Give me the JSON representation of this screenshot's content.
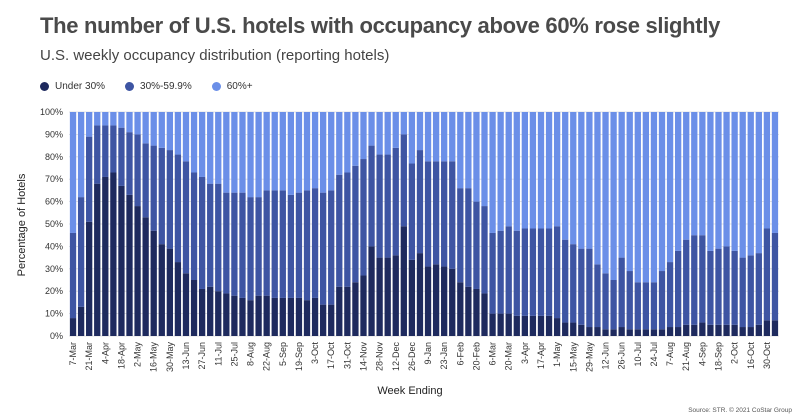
{
  "chart_data": {
    "type": "bar",
    "stacked": true,
    "title": "The number of U.S. hotels with occupancy above 60% rose slightly",
    "subtitle": "U.S. weekly occupancy distribution (reporting hotels)",
    "xlabel": "Week Ending",
    "ylabel": "Percentage of Hotels",
    "ylim": [
      0,
      100
    ],
    "yticks": [
      "0%",
      "10%",
      "20%",
      "30%",
      "40%",
      "50%",
      "60%",
      "70%",
      "80%",
      "90%",
      "100%"
    ],
    "xtick_labels": [
      "7-Mar",
      "21-Mar",
      "4-Apr",
      "18-Apr",
      "2-May",
      "16-May",
      "30-May",
      "13-Jun",
      "27-Jun",
      "11-Jul",
      "25-Jul",
      "8-Aug",
      "22-Aug",
      "5-Sep",
      "19-Sep",
      "3-Oct",
      "17-Oct",
      "31-Oct",
      "14-Nov",
      "28-Nov",
      "12-Dec",
      "26-Dec",
      "9-Jan",
      "23-Jan",
      "6-Feb",
      "20-Feb",
      "6-Mar",
      "20-Mar",
      "3-Apr",
      "17-Apr",
      "1-May",
      "15-May",
      "29-May",
      "12-Jun",
      "26-Jun",
      "10-Jul",
      "24-Jul",
      "7-Aug",
      "21-Aug",
      "4-Sep",
      "18-Sep",
      "2-Oct",
      "16-Oct",
      "30-Oct"
    ],
    "grid": true,
    "legend_position": "top-left",
    "series": [
      {
        "name": "Under 30%",
        "color": "#1e2a5e",
        "values": [
          8,
          13,
          51,
          68,
          71,
          73,
          67,
          63,
          58,
          53,
          47,
          41,
          39,
          33,
          28,
          25,
          21,
          22,
          20,
          19,
          18,
          17,
          16,
          18,
          18,
          17,
          17,
          17,
          17,
          16,
          17,
          14,
          14,
          22,
          22,
          24,
          27,
          40,
          35,
          35,
          36,
          49,
          34,
          37,
          31,
          32,
          31,
          30,
          24,
          22,
          21,
          19,
          10,
          10,
          10,
          9,
          9,
          9,
          9,
          9,
          8,
          6,
          6,
          5,
          4,
          4,
          3,
          3,
          4,
          3,
          3,
          3,
          3,
          3,
          4,
          4,
          5,
          5,
          6,
          5,
          5,
          5,
          5,
          4,
          4,
          5,
          7,
          7
        ]
      },
      {
        "name": "30%-59.9%",
        "color": "#3e55a3",
        "values": [
          38,
          49,
          38,
          26,
          23,
          21,
          26,
          28,
          32,
          33,
          38,
          43,
          44,
          48,
          50,
          48,
          50,
          46,
          48,
          45,
          46,
          47,
          46,
          44,
          47,
          48,
          48,
          46,
          47,
          49,
          49,
          50,
          51,
          50,
          51,
          52,
          52,
          45,
          46,
          46,
          48,
          41,
          43,
          46,
          47,
          46,
          47,
          48,
          42,
          44,
          39,
          39,
          36,
          37,
          39,
          38,
          39,
          39,
          39,
          39,
          41,
          37,
          35,
          34,
          35,
          28,
          25,
          22,
          31,
          26,
          21,
          21,
          21,
          26,
          29,
          34,
          38,
          40,
          39,
          33,
          34,
          35,
          33,
          31,
          32,
          32,
          41,
          39
        ]
      },
      {
        "name": "60%+",
        "color": "#6b8fe8",
        "values": [
          54,
          38,
          11,
          6,
          6,
          6,
          7,
          9,
          10,
          14,
          15,
          16,
          17,
          19,
          22,
          27,
          29,
          32,
          32,
          36,
          36,
          36,
          38,
          38,
          35,
          35,
          35,
          37,
          36,
          35,
          34,
          36,
          35,
          28,
          27,
          24,
          21,
          15,
          19,
          19,
          16,
          10,
          23,
          17,
          22,
          22,
          22,
          22,
          34,
          34,
          40,
          42,
          54,
          53,
          51,
          53,
          52,
          52,
          52,
          52,
          51,
          57,
          59,
          61,
          61,
          68,
          72,
          75,
          65,
          71,
          76,
          76,
          76,
          71,
          67,
          62,
          57,
          55,
          55,
          62,
          61,
          60,
          62,
          65,
          64,
          63,
          52,
          54
        ]
      }
    ]
  },
  "source": "Source: STR. © 2021 CoStar Group"
}
